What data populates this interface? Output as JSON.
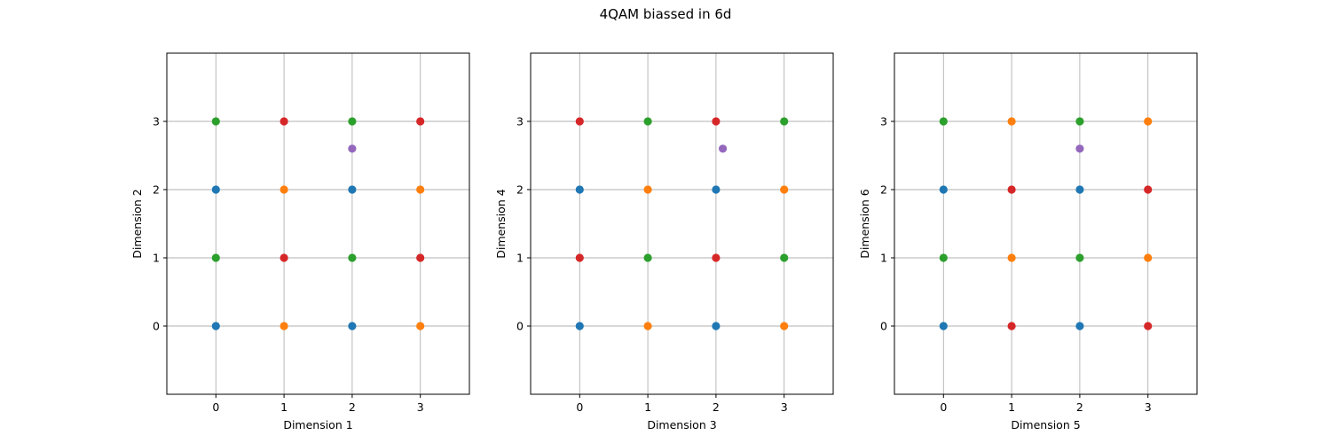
{
  "title": "4QAM biassed in 6d",
  "colors": {
    "blue": "#1f77b4",
    "orange": "#ff7f0e",
    "green": "#2ca02c",
    "red": "#d62728",
    "purple": "#9467bd",
    "grid": "#b0b0b0",
    "frame": "#000000"
  },
  "chart_data": [
    {
      "type": "scatter",
      "xlabel": "Dimension 1",
      "ylabel": "Dimension 2",
      "xlim": [
        -0.72,
        3.72
      ],
      "ylim": [
        -1,
        4
      ],
      "xticks": [
        0,
        1,
        2,
        3
      ],
      "yticks": [
        0,
        1,
        2,
        3
      ],
      "grid": true,
      "points": [
        {
          "x": 0,
          "y": 0,
          "color": "blue"
        },
        {
          "x": 1,
          "y": 0,
          "color": "orange"
        },
        {
          "x": 2,
          "y": 0,
          "color": "blue"
        },
        {
          "x": 3,
          "y": 0,
          "color": "orange"
        },
        {
          "x": 0,
          "y": 1,
          "color": "green"
        },
        {
          "x": 1,
          "y": 1,
          "color": "red"
        },
        {
          "x": 2,
          "y": 1,
          "color": "green"
        },
        {
          "x": 3,
          "y": 1,
          "color": "red"
        },
        {
          "x": 0,
          "y": 2,
          "color": "blue"
        },
        {
          "x": 1,
          "y": 2,
          "color": "orange"
        },
        {
          "x": 2,
          "y": 2,
          "color": "blue"
        },
        {
          "x": 3,
          "y": 2,
          "color": "orange"
        },
        {
          "x": 0,
          "y": 3,
          "color": "green"
        },
        {
          "x": 1,
          "y": 3,
          "color": "red"
        },
        {
          "x": 2,
          "y": 3,
          "color": "green"
        },
        {
          "x": 3,
          "y": 3,
          "color": "red"
        },
        {
          "x": 2.0,
          "y": 2.6,
          "color": "purple"
        }
      ]
    },
    {
      "type": "scatter",
      "xlabel": "Dimension 3",
      "ylabel": "Dimension 4",
      "xlim": [
        -0.72,
        3.72
      ],
      "ylim": [
        -1,
        4
      ],
      "xticks": [
        0,
        1,
        2,
        3
      ],
      "yticks": [
        0,
        1,
        2,
        3
      ],
      "grid": true,
      "points": [
        {
          "x": 0,
          "y": 0,
          "color": "blue"
        },
        {
          "x": 1,
          "y": 0,
          "color": "orange"
        },
        {
          "x": 2,
          "y": 0,
          "color": "blue"
        },
        {
          "x": 3,
          "y": 0,
          "color": "orange"
        },
        {
          "x": 0,
          "y": 1,
          "color": "red"
        },
        {
          "x": 1,
          "y": 1,
          "color": "green"
        },
        {
          "x": 2,
          "y": 1,
          "color": "red"
        },
        {
          "x": 3,
          "y": 1,
          "color": "green"
        },
        {
          "x": 0,
          "y": 2,
          "color": "blue"
        },
        {
          "x": 1,
          "y": 2,
          "color": "orange"
        },
        {
          "x": 2,
          "y": 2,
          "color": "blue"
        },
        {
          "x": 3,
          "y": 2,
          "color": "orange"
        },
        {
          "x": 0,
          "y": 3,
          "color": "red"
        },
        {
          "x": 1,
          "y": 3,
          "color": "green"
        },
        {
          "x": 2,
          "y": 3,
          "color": "red"
        },
        {
          "x": 3,
          "y": 3,
          "color": "green"
        },
        {
          "x": 2.1,
          "y": 2.6,
          "color": "purple"
        }
      ]
    },
    {
      "type": "scatter",
      "xlabel": "Dimension 5",
      "ylabel": "Dimension 6",
      "xlim": [
        -0.72,
        3.72
      ],
      "ylim": [
        -1,
        4
      ],
      "xticks": [
        0,
        1,
        2,
        3
      ],
      "yticks": [
        0,
        1,
        2,
        3
      ],
      "grid": true,
      "points": [
        {
          "x": 0,
          "y": 0,
          "color": "blue"
        },
        {
          "x": 1,
          "y": 0,
          "color": "red"
        },
        {
          "x": 2,
          "y": 0,
          "color": "blue"
        },
        {
          "x": 3,
          "y": 0,
          "color": "red"
        },
        {
          "x": 0,
          "y": 1,
          "color": "green"
        },
        {
          "x": 1,
          "y": 1,
          "color": "orange"
        },
        {
          "x": 2,
          "y": 1,
          "color": "green"
        },
        {
          "x": 3,
          "y": 1,
          "color": "orange"
        },
        {
          "x": 0,
          "y": 2,
          "color": "blue"
        },
        {
          "x": 1,
          "y": 2,
          "color": "red"
        },
        {
          "x": 2,
          "y": 2,
          "color": "blue"
        },
        {
          "x": 3,
          "y": 2,
          "color": "red"
        },
        {
          "x": 0,
          "y": 3,
          "color": "green"
        },
        {
          "x": 1,
          "y": 3,
          "color": "orange"
        },
        {
          "x": 2,
          "y": 3,
          "color": "green"
        },
        {
          "x": 3,
          "y": 3,
          "color": "orange"
        },
        {
          "x": 2.0,
          "y": 2.6,
          "color": "purple"
        }
      ]
    }
  ]
}
